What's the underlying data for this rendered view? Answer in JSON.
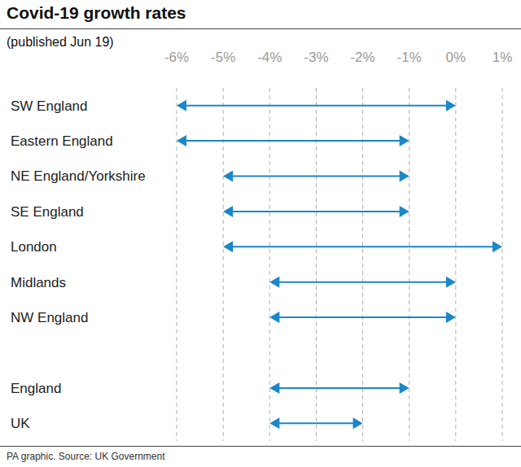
{
  "chart_data": {
    "type": "range",
    "title": "Covid-19 growth rates",
    "subtitle": "(published Jun 19)",
    "source": "PA graphic. Source: UK Government",
    "orientation": "horizontal",
    "categories": [
      "SW England",
      "Eastern England",
      "NE England/Yorkshire",
      "SE England",
      "London",
      "Midlands",
      "NW England",
      null,
      "England",
      "UK"
    ],
    "values": [
      [
        -6,
        0
      ],
      [
        -6,
        -1
      ],
      [
        -5,
        -1
      ],
      [
        -5,
        -1
      ],
      [
        -5,
        1
      ],
      [
        -4,
        0
      ],
      [
        -4,
        0
      ],
      null,
      [
        -4,
        -1
      ],
      [
        -4,
        -2
      ]
    ],
    "color": "#1a87c8",
    "marker": "arrow",
    "xlim": [
      -6,
      1
    ],
    "xticks": [
      {
        "value": -6,
        "label": "-6%"
      },
      {
        "value": -5,
        "label": "-5%"
      },
      {
        "value": -4,
        "label": "-4%"
      },
      {
        "value": -3,
        "label": "-3%"
      },
      {
        "value": -2,
        "label": "-2%"
      },
      {
        "value": -1,
        "label": "-1%"
      },
      {
        "value": 0,
        "label": "0%"
      },
      {
        "value": 1,
        "label": "1%"
      }
    ],
    "grid": true
  }
}
